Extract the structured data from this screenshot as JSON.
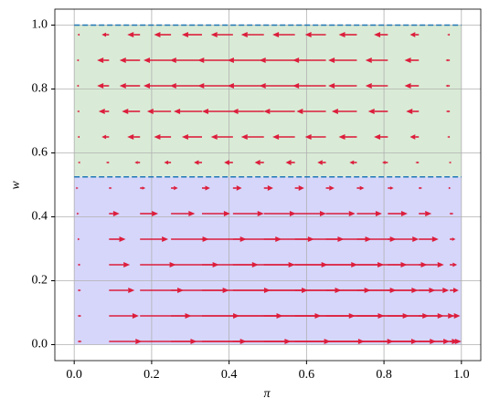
{
  "chart_data": {
    "type": "quiver",
    "xlabel": "π",
    "ylabel": "w",
    "xlim": [
      -0.05,
      1.05
    ],
    "ylim": [
      -0.05,
      1.05
    ],
    "xticks": [
      {
        "value": 0,
        "label": "0.0"
      },
      0.2,
      0.4,
      0.6,
      0.8,
      {
        "value": 1,
        "label": "1.0"
      }
    ],
    "yticks": [
      {
        "value": 0,
        "label": "0.0"
      },
      0.2,
      0.4,
      0.6,
      0.8,
      {
        "value": 1,
        "label": "1.0"
      }
    ],
    "grid": true,
    "regions": [
      {
        "x": [
          0,
          1
        ],
        "y": [
          0,
          0.525
        ],
        "color": "#d6d6fb"
      },
      {
        "x": [
          0,
          1
        ],
        "y": [
          0.525,
          1
        ],
        "color": "#d9ebd6"
      }
    ],
    "hlines": [
      {
        "y": 1,
        "color": "#1f77b4"
      },
      {
        "y": 0.525,
        "color": "#1f77b4"
      }
    ],
    "color": "#dc1e3c",
    "x": [
      0.01,
      0.09,
      0.17,
      0.25,
      0.33,
      0.41,
      0.49,
      0.57,
      0.65,
      0.73,
      0.81,
      0.89,
      0.97
    ],
    "y": [
      0.01,
      0.09,
      0.17,
      0.25,
      0.33,
      0.41,
      0.49,
      0.57,
      0.65,
      0.73,
      0.81,
      0.89,
      0.97
    ],
    "u": [
      [
        0.01,
        0.085,
        0.147,
        0.195,
        0.23,
        0.252,
        0.26,
        0.255,
        0.237,
        0.205,
        0.16,
        0.102,
        0.03
      ],
      [
        0.009,
        0.077,
        0.133,
        0.177,
        0.209,
        0.228,
        0.236,
        0.231,
        0.215,
        0.186,
        0.145,
        0.092,
        0.027
      ],
      [
        0.008,
        0.066,
        0.113,
        0.15,
        0.177,
        0.194,
        0.2,
        0.196,
        0.182,
        0.158,
        0.123,
        0.078,
        0.023
      ],
      [
        0.007,
        0.054,
        0.093,
        0.124,
        0.146,
        0.16,
        0.165,
        0.162,
        0.15,
        0.13,
        0.102,
        0.065,
        0.019
      ],
      [
        0.005,
        0.043,
        0.073,
        0.098,
        0.115,
        0.126,
        0.13,
        0.127,
        0.118,
        0.102,
        0.08,
        0.051,
        0.015
      ],
      [
        0.003,
        0.027,
        0.047,
        0.062,
        0.073,
        0.08,
        0.083,
        0.081,
        0.076,
        0.065,
        0.051,
        0.033,
        0.01
      ],
      [
        0.001,
        0.008,
        0.014,
        0.018,
        0.021,
        0.023,
        0.024,
        0.024,
        0.022,
        0.019,
        0.015,
        0.009,
        0.003
      ],
      [
        -0.001,
        -0.008,
        -0.014,
        -0.018,
        -0.021,
        -0.023,
        -0.024,
        -0.024,
        -0.022,
        -0.019,
        -0.015,
        -0.009,
        -0.003
      ],
      [
        -0.002,
        -0.019,
        -0.033,
        -0.044,
        -0.052,
        -0.057,
        -0.059,
        -0.058,
        -0.054,
        -0.047,
        -0.036,
        -0.023,
        -0.007
      ],
      [
        -0.003,
        -0.027,
        -0.047,
        -0.062,
        -0.073,
        -0.08,
        -0.083,
        -0.081,
        -0.076,
        -0.065,
        -0.051,
        -0.033,
        -0.01
      ],
      [
        -0.004,
        -0.031,
        -0.053,
        -0.071,
        -0.083,
        -0.091,
        -0.094,
        -0.092,
        -0.086,
        -0.074,
        -0.058,
        -0.037,
        -0.011
      ],
      [
        -0.004,
        -0.031,
        -0.053,
        -0.071,
        -0.083,
        -0.091,
        -0.094,
        -0.092,
        -0.086,
        -0.074,
        -0.058,
        -0.037,
        -0.011
      ],
      [
        -0.002,
        -0.019,
        -0.033,
        -0.044,
        -0.052,
        -0.057,
        -0.059,
        -0.058,
        -0.054,
        -0.047,
        -0.036,
        -0.023,
        -0.007
      ]
    ]
  }
}
